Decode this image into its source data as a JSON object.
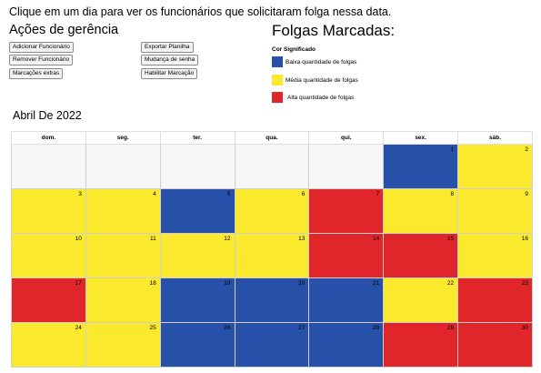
{
  "instruction": "Clique em um dia para ver os funcionários que solicitaram folga nessa data.",
  "management": {
    "title": "Ações de gerência",
    "buttons": [
      "Adicionar Funcionário",
      "Remover Funcionário",
      "Marcações extras",
      "Exportar Planilha",
      "Mudança de senha",
      "Habilitar Marcação"
    ]
  },
  "legend": {
    "title": "Folgas Marcadas:",
    "header": "Cor Significado",
    "items": [
      {
        "label": "Baixa quantidade de folgas",
        "color": "#2750a8"
      },
      {
        "label": "Média quantidade de folgas",
        "color": "#fbe92e"
      },
      {
        "label": "Alta quantidade de folgas",
        "color": "#e0262b"
      }
    ]
  },
  "calendar": {
    "title": "Abril De 2022",
    "weekdays": [
      "dom.",
      "seg.",
      "ter.",
      "qua.",
      "qui.",
      "sex.",
      "sáb."
    ],
    "colors": {
      "low": "#2750a8",
      "mid": "#fbe92e",
      "high": "#e0262b"
    },
    "weeks": [
      [
        {
          "day": "",
          "level": "empty"
        },
        {
          "day": "",
          "level": "empty"
        },
        {
          "day": "",
          "level": "empty"
        },
        {
          "day": "",
          "level": "empty"
        },
        {
          "day": "",
          "level": "empty"
        },
        {
          "day": "1",
          "level": "low"
        },
        {
          "day": "2",
          "level": "mid"
        }
      ],
      [
        {
          "day": "3",
          "level": "mid"
        },
        {
          "day": "4",
          "level": "mid"
        },
        {
          "day": "5",
          "level": "low"
        },
        {
          "day": "6",
          "level": "mid"
        },
        {
          "day": "7",
          "level": "high"
        },
        {
          "day": "8",
          "level": "mid"
        },
        {
          "day": "9",
          "level": "mid"
        }
      ],
      [
        {
          "day": "10",
          "level": "mid"
        },
        {
          "day": "11",
          "level": "mid"
        },
        {
          "day": "12",
          "level": "mid"
        },
        {
          "day": "13",
          "level": "mid"
        },
        {
          "day": "14",
          "level": "high"
        },
        {
          "day": "15",
          "level": "high"
        },
        {
          "day": "16",
          "level": "mid"
        }
      ],
      [
        {
          "day": "17",
          "level": "high"
        },
        {
          "day": "18",
          "level": "mid"
        },
        {
          "day": "19",
          "level": "low"
        },
        {
          "day": "20",
          "level": "low"
        },
        {
          "day": "21",
          "level": "low"
        },
        {
          "day": "22",
          "level": "mid"
        },
        {
          "day": "23",
          "level": "high"
        }
      ],
      [
        {
          "day": "24",
          "level": "mid"
        },
        {
          "day": "25",
          "level": "mid"
        },
        {
          "day": "26",
          "level": "low"
        },
        {
          "day": "27",
          "level": "low"
        },
        {
          "day": "28",
          "level": "low"
        },
        {
          "day": "29",
          "level": "high"
        },
        {
          "day": "30",
          "level": "high"
        }
      ]
    ]
  }
}
